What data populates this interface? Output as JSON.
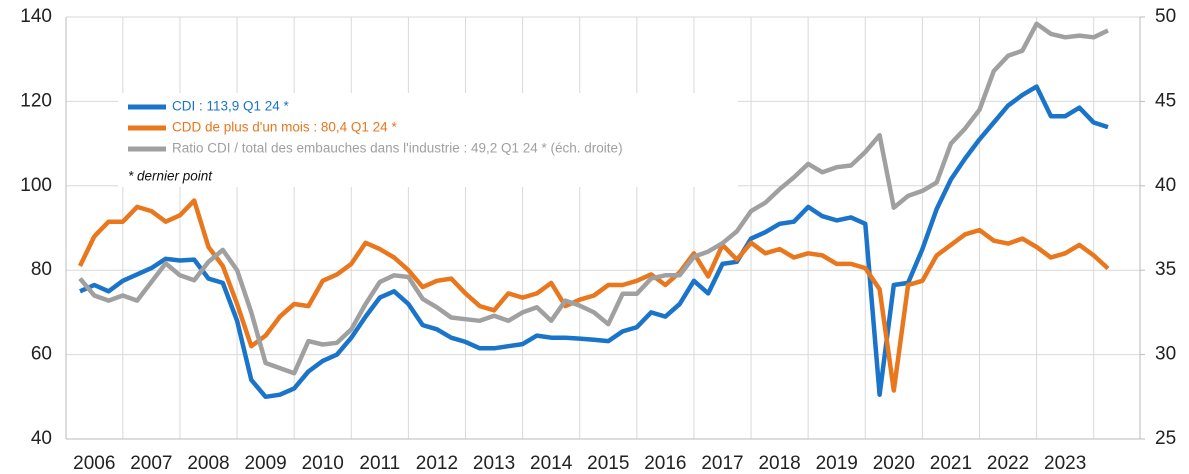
{
  "chart_data": {
    "type": "line",
    "categories": [
      null,
      "2006",
      null,
      null,
      null,
      "2007",
      null,
      null,
      null,
      "2008",
      null,
      null,
      null,
      "2009",
      null,
      null,
      null,
      "2010",
      null,
      null,
      null,
      "2011",
      null,
      null,
      null,
      "2012",
      null,
      null,
      null,
      "2013",
      null,
      null,
      null,
      "2014",
      null,
      null,
      null,
      "2015",
      null,
      null,
      null,
      "2016",
      null,
      null,
      null,
      "2017",
      null,
      null,
      null,
      "2018",
      null,
      null,
      null,
      "2019",
      null,
      null,
      null,
      "2020",
      null,
      null,
      null,
      "2021",
      null,
      null,
      null,
      "2022",
      null,
      null,
      null,
      "2023",
      null,
      null,
      null
    ],
    "series": [
      {
        "name": "CDI : 113,9 Q1 24 *",
        "color": "#1a74c9",
        "axis": "y",
        "values": [
          75,
          76.5,
          75,
          77.5,
          79,
          80.5,
          82.7,
          82.3,
          82.5,
          78,
          77,
          68,
          54,
          50,
          50.5,
          52,
          56,
          58.5,
          60,
          64,
          69,
          73.5,
          75,
          72,
          67,
          66,
          64,
          63,
          61.5,
          61.5,
          62,
          62.5,
          64.5,
          64,
          64,
          63.8,
          63.5,
          63.2,
          65.5,
          66.5,
          70,
          69,
          72,
          77.5,
          74.5,
          81.5,
          82,
          87.5,
          89,
          91,
          91.5,
          95,
          92.8,
          91.8,
          92.5,
          91,
          50.5,
          76.5,
          77,
          85,
          94.5,
          101.5,
          106.5,
          111,
          115,
          119,
          121.5,
          123.5,
          116.5,
          116.5,
          118.5,
          115,
          113.9
        ]
      },
      {
        "name": "CDD de plus d'un mois : 80,4 Q1 24 *",
        "color": "#e8771e",
        "axis": "y",
        "values": [
          81,
          88,
          91.5,
          91.5,
          95,
          94,
          91.5,
          93,
          96.5,
          85.5,
          81,
          72,
          62,
          64.5,
          69,
          72,
          71.5,
          77.5,
          79,
          81.5,
          86.5,
          85,
          83,
          80,
          76,
          77.5,
          78,
          74.5,
          71.5,
          70.5,
          74.5,
          73.5,
          74.5,
          77,
          71.5,
          73,
          74,
          76.5,
          76.5,
          77.5,
          79,
          76.5,
          79.5,
          84,
          78.5,
          86,
          82.5,
          86.5,
          84,
          85,
          83,
          84,
          83.5,
          81.5,
          81.5,
          80.5,
          75.5,
          51.5,
          76.5,
          77.5,
          83.5,
          86,
          88.5,
          89.5,
          87,
          86.3,
          87.5,
          85.5,
          83,
          84,
          86,
          83.5,
          80.4
        ]
      },
      {
        "name": "Ratio CDI / total des embauches dans l'industrie : 49,2 Q1 24 * (éch. droite)",
        "color": "#a0a0a0",
        "axis": "y2",
        "values": [
          34.5,
          33.5,
          33.2,
          33.5,
          33.2,
          34.3,
          35.4,
          34.7,
          34.4,
          35.5,
          36.2,
          35,
          32.5,
          29.5,
          29.2,
          28.9,
          30.8,
          30.6,
          30.7,
          31.5,
          33,
          34.3,
          34.7,
          34.6,
          33.3,
          32.8,
          32.2,
          32.1,
          32,
          32.3,
          32,
          32.5,
          32.8,
          32,
          33.2,
          32.9,
          32.5,
          31.8,
          33.6,
          33.6,
          34.5,
          34.7,
          34.7,
          35.8,
          36.1,
          36.6,
          37.3,
          38.5,
          39,
          39.8,
          40.5,
          41.3,
          40.8,
          41.1,
          41.2,
          42,
          43,
          38.7,
          39.4,
          39.7,
          40.2,
          42.5,
          43.4,
          44.5,
          46.8,
          47.7,
          48,
          49.6,
          49,
          48.8,
          48.9,
          48.8,
          49.2
        ]
      }
    ],
    "annotation": "* dernier point",
    "ylim": [
      40,
      140
    ],
    "yticks": [
      40,
      60,
      80,
      100,
      120,
      140
    ],
    "y2lim": [
      25,
      50
    ],
    "y2ticks": [
      25,
      30,
      35,
      40,
      45,
      50
    ],
    "grid": true
  }
}
